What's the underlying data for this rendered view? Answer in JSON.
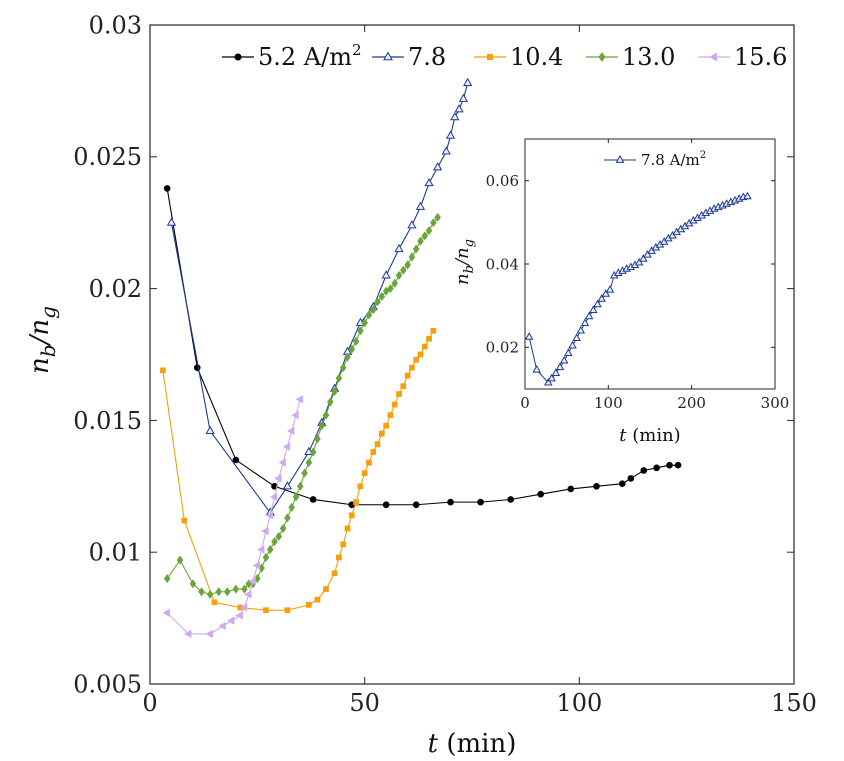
{
  "chart_data": [
    {
      "type": "line",
      "title": "",
      "xlabel": "t (min)",
      "xlabel_var": "t",
      "xlabel_unit": " (min)",
      "ylabel": "n_b/n_g",
      "ylabel_num": "n",
      "ylabel_num_sub": "b",
      "ylabel_den": "n",
      "ylabel_den_sub": "g",
      "xlim": [
        0,
        150
      ],
      "ylim": [
        0.005,
        0.03
      ],
      "xticks": [
        0,
        50,
        100,
        150
      ],
      "xtick_labels": [
        "0",
        "50",
        "100",
        "150"
      ],
      "yticks": [
        0.005,
        0.01,
        0.015,
        0.02,
        0.025,
        0.03
      ],
      "ytick_labels": [
        "0.005",
        "0.01",
        "0.015",
        "0.02",
        "0.025",
        "0.03"
      ],
      "grid": false,
      "legend_position": "top",
      "series": [
        {
          "name": "5.2",
          "label": "5.2 A/m",
          "label_sup": "2",
          "color": "#000000",
          "marker": "circle",
          "x": [
            4,
            11,
            20,
            29,
            38,
            47,
            55,
            62,
            70,
            77,
            84,
            91,
            98,
            104,
            110,
            112,
            115,
            118,
            121,
            123
          ],
          "y": [
            0.0238,
            0.017,
            0.0135,
            0.0125,
            0.012,
            0.0118,
            0.0118,
            0.0118,
            0.0119,
            0.0119,
            0.012,
            0.0122,
            0.0124,
            0.0125,
            0.0126,
            0.0128,
            0.0131,
            0.0132,
            0.0133,
            0.0133
          ]
        },
        {
          "name": "7.8",
          "label": "7.8",
          "label_sup": "",
          "color": "#1f3a8f",
          "marker": "triangle",
          "x": [
            5,
            14,
            28,
            32,
            37,
            40,
            43,
            46,
            49,
            52,
            55,
            58,
            61,
            63,
            65,
            67,
            69,
            70,
            71,
            72,
            73,
            74
          ],
          "y": [
            0.0225,
            0.0146,
            0.0115,
            0.0125,
            0.0138,
            0.0149,
            0.0162,
            0.0176,
            0.0187,
            0.0193,
            0.0205,
            0.0215,
            0.0224,
            0.0231,
            0.024,
            0.0246,
            0.0252,
            0.0258,
            0.0265,
            0.0268,
            0.0272,
            0.0278
          ]
        },
        {
          "name": "10.4",
          "label": "10.4",
          "label_sup": "",
          "color": "#f5a00a",
          "marker": "square",
          "x": [
            3,
            8,
            15,
            21,
            27,
            32,
            37,
            39,
            41,
            43,
            44,
            45,
            46,
            47,
            48,
            49,
            50,
            51,
            52,
            53,
            54,
            55,
            56,
            57,
            58,
            59,
            60,
            61,
            62,
            63,
            64,
            65,
            66
          ],
          "y": [
            0.0169,
            0.0112,
            0.0081,
            0.0079,
            0.0078,
            0.0078,
            0.008,
            0.0082,
            0.0086,
            0.0092,
            0.0098,
            0.0103,
            0.0109,
            0.0114,
            0.0119,
            0.0125,
            0.013,
            0.0134,
            0.0138,
            0.0141,
            0.0145,
            0.0148,
            0.0152,
            0.0156,
            0.016,
            0.0163,
            0.0167,
            0.017,
            0.0173,
            0.0175,
            0.0178,
            0.0181,
            0.0184
          ]
        },
        {
          "name": "13.0",
          "label": "13.0",
          "label_sup": "",
          "color": "#6aa53a",
          "marker": "diamond",
          "x": [
            4,
            7,
            10,
            12,
            14,
            16,
            18,
            20,
            22,
            23,
            24,
            25,
            26,
            27,
            28,
            29,
            30,
            31,
            32,
            33,
            34,
            35,
            36,
            37,
            38,
            39,
            40,
            41,
            42,
            43,
            44,
            45,
            46,
            47,
            48,
            49,
            50,
            51,
            52,
            53,
            54,
            55,
            56,
            57,
            58,
            59,
            60,
            61,
            62,
            63,
            64,
            65,
            66,
            67
          ],
          "y": [
            0.009,
            0.0097,
            0.0088,
            0.0085,
            0.0084,
            0.0085,
            0.0085,
            0.0086,
            0.0086,
            0.0088,
            0.0088,
            0.009,
            0.0094,
            0.0098,
            0.0101,
            0.0104,
            0.0106,
            0.0109,
            0.0113,
            0.0117,
            0.0121,
            0.0125,
            0.013,
            0.0134,
            0.0138,
            0.0143,
            0.0148,
            0.0152,
            0.0157,
            0.0161,
            0.0166,
            0.017,
            0.0174,
            0.0177,
            0.018,
            0.0184,
            0.0187,
            0.019,
            0.0192,
            0.0195,
            0.0197,
            0.0199,
            0.02,
            0.0202,
            0.0205,
            0.0207,
            0.0209,
            0.0212,
            0.0215,
            0.0218,
            0.022,
            0.0222,
            0.0225,
            0.0227
          ]
        },
        {
          "name": "15.6",
          "label": "15.6",
          "label_sup": "",
          "color": "#cfaaf2",
          "marker": "triangle-left",
          "x": [
            4,
            9,
            14,
            17,
            19,
            21,
            22,
            23,
            24,
            25,
            26,
            27,
            28,
            29,
            30,
            31,
            32,
            33,
            34,
            35
          ],
          "y": [
            0.0077,
            0.0069,
            0.0069,
            0.0072,
            0.0074,
            0.0076,
            0.0079,
            0.0084,
            0.0089,
            0.0095,
            0.0101,
            0.0108,
            0.0114,
            0.0121,
            0.0128,
            0.0134,
            0.014,
            0.0146,
            0.0152,
            0.0158
          ]
        }
      ]
    },
    {
      "type": "line",
      "title": "",
      "xlabel": "t (min)",
      "xlabel_var": "t",
      "xlabel_unit": " (min)",
      "ylabel": "n_b/n_g",
      "ylabel_num": "n",
      "ylabel_num_sub": "b",
      "ylabel_den": "n",
      "ylabel_den_sub": "g",
      "xlim": [
        0,
        300
      ],
      "ylim": [
        0.01,
        0.07
      ],
      "xticks": [
        0,
        100,
        200,
        300
      ],
      "xtick_labels": [
        "0",
        "100",
        "200",
        "300"
      ],
      "yticks": [
        0.02,
        0.04,
        0.06
      ],
      "ytick_labels": [
        "0.02",
        "0.04",
        "0.06"
      ],
      "grid": false,
      "legend_position": "top",
      "series": [
        {
          "name": "7.8 A/m2",
          "label": "7.8 A/m",
          "label_sup": "2",
          "color": "#1f3a8f",
          "marker": "triangle",
          "x": [
            5,
            14,
            28,
            32,
            37,
            42,
            47,
            52,
            57,
            62,
            67,
            72,
            77,
            82,
            87,
            92,
            97,
            102,
            107,
            112,
            117,
            122,
            127,
            132,
            137,
            142,
            147,
            152,
            157,
            162,
            167,
            172,
            177,
            182,
            187,
            192,
            197,
            202,
            207,
            212,
            217,
            222,
            227,
            232,
            237,
            242,
            247,
            252,
            257,
            262,
            267
          ],
          "y": [
            0.0225,
            0.0146,
            0.0115,
            0.0125,
            0.0138,
            0.0152,
            0.0168,
            0.0186,
            0.0204,
            0.0222,
            0.024,
            0.0258,
            0.0274,
            0.0289,
            0.0303,
            0.0316,
            0.0328,
            0.0338,
            0.0372,
            0.0378,
            0.0383,
            0.0388,
            0.0392,
            0.0397,
            0.0403,
            0.0412,
            0.0422,
            0.0431,
            0.0439,
            0.0446,
            0.0453,
            0.0461,
            0.0468,
            0.0476,
            0.0483,
            0.049,
            0.0497,
            0.0504,
            0.051,
            0.0516,
            0.0522,
            0.0527,
            0.0532,
            0.0536,
            0.054,
            0.0544,
            0.0548,
            0.0552,
            0.0556,
            0.056,
            0.0562
          ]
        }
      ]
    }
  ]
}
